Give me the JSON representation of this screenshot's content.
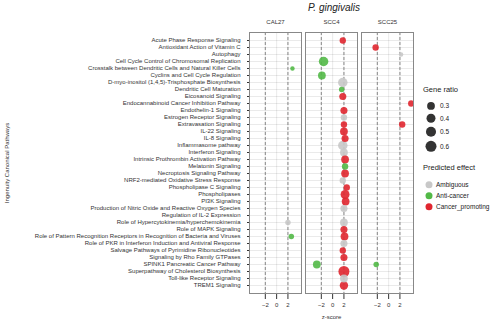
{
  "chart_data": {
    "type": "scatter",
    "title": "P. gingivalis",
    "x_label": "z-score",
    "y_label": "Ingenuity Canonical Pathways",
    "facets": [
      "CAL27",
      "SCC4",
      "SCC25"
    ],
    "xlim": [
      -4.8,
      4.4
    ],
    "xticks": [
      -2,
      0,
      2
    ],
    "reference_lines": [
      -2,
      2
    ],
    "grid": true,
    "categories": [
      "Acute Phase Response Signaling",
      "Antioxidant Action of Vitamin C",
      "Autophagy",
      "Cell Cycle Control of Chromosomal Replication",
      "Crosstalk between Dendritic Cells and Natural Killer Cells",
      "Cyclins and Cell Cycle Regulation",
      "D-myo-inositol (1,4,5)-Trisphosphate Biosynthesis",
      "Dendritic Cell Maturation",
      "Eicosanoid Signaling",
      "Endocannabinoid Cancer Inhibition Pathway",
      "Endothelin-1 Signaling",
      "Estrogen Receptor Signaling",
      "Extravasation Signaling",
      "IL-22 Signaling",
      "IL-8 Signaling",
      "Inflammasome pathway",
      "Interferon Signaling",
      "Intrinsic Prothrombin Activation Pathway",
      "Melatonin Signaling",
      "Necroptosis Signaling Pathway",
      "NRF2-mediated Oxidative Stress Response",
      "Phospholipase C Signaling",
      "Phospholipases",
      "PI3K Signaling",
      "Production of Nitric Oxide and Reactive Oxygen Species",
      "Regulation of IL-2 Expression",
      "Role of Hypercytokinemia/hyperchemokinemia",
      "Role of MAPK Signaling",
      "Role of Pattern Recognition Receptors in Recognition of Bacteria and Viruses",
      "Role of PKR in Interferon Induction and Antiviral Response",
      "Salvage Pathways of Pyrimidine Ribonucleotides",
      "Signaling by Rho Family GTPases",
      "SPINK1 Pancreatic Cancer Pathway",
      "Superpathway of Cholesterol Biosynthesis",
      "Toll-like Receptor Signaling",
      "TREM1 Signaling"
    ],
    "size_legend": {
      "title": "Gene ratio",
      "values": [
        0.3,
        0.4,
        0.5,
        0.6
      ]
    },
    "legend_title": "Predicted effect",
    "series": [
      {
        "name": "Ambiguous",
        "color": "#c8c8c8",
        "values": [
          {
            "facet": "CAL27",
            "category": "Role of Hypercytokinemia/hyperchemokinemia",
            "z": 2.0,
            "gene_ratio": 0.15
          },
          {
            "facet": "SCC4",
            "category": "D-myo-inositol (1,4,5)-Trisphosphate Biosynthesis",
            "z": 1.8,
            "gene_ratio": 0.45
          },
          {
            "facet": "SCC4",
            "category": "Estrogen Receptor Signaling",
            "z": 2.0,
            "gene_ratio": 0.2
          },
          {
            "facet": "SCC4",
            "category": "Inflammasome pathway",
            "z": 1.8,
            "gene_ratio": 0.45
          },
          {
            "facet": "SCC4",
            "category": "Interferon Signaling",
            "z": 2.0,
            "gene_ratio": 0.3
          },
          {
            "facet": "SCC4",
            "category": "NRF2-mediated Oxidative Stress Response",
            "z": 1.8,
            "gene_ratio": 0.2
          },
          {
            "facet": "SCC4",
            "category": "Production of Nitric Oxide and Reactive Oxygen Species",
            "z": 2.0,
            "gene_ratio": 0.25
          },
          {
            "facet": "SCC4",
            "category": "Role of Hypercytokinemia/hyperchemokinemia",
            "z": 2.0,
            "gene_ratio": 0.3
          },
          {
            "facet": "SCC4",
            "category": "Role of PKR in Interferon Induction and Antiviral Response",
            "z": 2.0,
            "gene_ratio": 0.25
          },
          {
            "facet": "SCC4",
            "category": "Toll-like Receptor Signaling",
            "z": 2.0,
            "gene_ratio": 0.3
          },
          {
            "facet": "SCC25",
            "category": "Autophagy",
            "z": 2.2,
            "gene_ratio": 0.1
          }
        ]
      },
      {
        "name": "Anti-cancer",
        "color": "#52b947",
        "values": [
          {
            "facet": "CAL27",
            "category": "Crosstalk between Dendritic Cells and Natural Killer Cells",
            "z": 2.8,
            "gene_ratio": 0.1
          },
          {
            "facet": "CAL27",
            "category": "Role of Pattern Recognition Receptors in Recognition of Bacteria and Viruses",
            "z": 2.6,
            "gene_ratio": 0.15
          },
          {
            "facet": "SCC4",
            "category": "Cell Cycle Control of Chromosomal Replication",
            "z": -1.6,
            "gene_ratio": 0.45
          },
          {
            "facet": "SCC4",
            "category": "Cyclins and Cell Cycle Regulation",
            "z": -1.9,
            "gene_ratio": 0.3
          },
          {
            "facet": "SCC4",
            "category": "Dendritic Cell Maturation",
            "z": 1.6,
            "gene_ratio": 0.15
          },
          {
            "facet": "SCC4",
            "category": "Melatonin Signaling",
            "z": 2.2,
            "gene_ratio": 0.2
          },
          {
            "facet": "SCC4",
            "category": "SPINK1 Pancreatic Cancer Pathway",
            "z": -2.8,
            "gene_ratio": 0.3
          },
          {
            "facet": "SCC25",
            "category": "SPINK1 Pancreatic Cancer Pathway",
            "z": -2.2,
            "gene_ratio": 0.15
          }
        ]
      },
      {
        "name": "Cancer_promoting",
        "color": "#e0262f",
        "values": [
          {
            "facet": "SCC4",
            "category": "Acute Phase Response Signaling",
            "z": 1.8,
            "gene_ratio": 0.2
          },
          {
            "facet": "SCC4",
            "category": "Eicosanoid Signaling",
            "z": 1.8,
            "gene_ratio": 0.25
          },
          {
            "facet": "SCC4",
            "category": "Endothelin-1 Signaling",
            "z": 2.0,
            "gene_ratio": 0.25
          },
          {
            "facet": "SCC4",
            "category": "Extravasation Signaling",
            "z": 2.0,
            "gene_ratio": 0.2
          },
          {
            "facet": "SCC4",
            "category": "IL-22 Signaling",
            "z": 2.0,
            "gene_ratio": 0.3
          },
          {
            "facet": "SCC4",
            "category": "IL-8 Signaling",
            "z": 2.2,
            "gene_ratio": 0.25
          },
          {
            "facet": "SCC4",
            "category": "Intrinsic Prothrombin Activation Pathway",
            "z": 2.2,
            "gene_ratio": 0.3
          },
          {
            "facet": "SCC4",
            "category": "Necroptosis Signaling Pathway",
            "z": 2.2,
            "gene_ratio": 0.3
          },
          {
            "facet": "SCC4",
            "category": "Phospholipase C Signaling",
            "z": 2.5,
            "gene_ratio": 0.2
          },
          {
            "facet": "SCC4",
            "category": "Phospholipases",
            "z": 2.2,
            "gene_ratio": 0.4
          },
          {
            "facet": "SCC4",
            "category": "PI3K Signaling",
            "z": 2.3,
            "gene_ratio": 0.3
          },
          {
            "facet": "SCC4",
            "category": "Role of MAPK Signaling",
            "z": 2.0,
            "gene_ratio": 0.25
          },
          {
            "facet": "SCC4",
            "category": "Role of Pattern Recognition Receptors in Recognition of Bacteria and Viruses",
            "z": 2.1,
            "gene_ratio": 0.3
          },
          {
            "facet": "SCC4",
            "category": "Salvage Pathways of Pyrimidine Ribonucleotides",
            "z": 1.8,
            "gene_ratio": 0.2
          },
          {
            "facet": "SCC4",
            "category": "Signaling by Rho Family GTPases",
            "z": 2.0,
            "gene_ratio": 0.25
          },
          {
            "facet": "SCC4",
            "category": "Superpathway of Cholesterol Biosynthesis",
            "z": 2.0,
            "gene_ratio": 0.6
          },
          {
            "facet": "SCC4",
            "category": "TREM1 Signaling",
            "z": 2.0,
            "gene_ratio": 0.35
          },
          {
            "facet": "SCC25",
            "category": "Antioxidant Action of Vitamin C",
            "z": -2.3,
            "gene_ratio": 0.2
          },
          {
            "facet": "SCC25",
            "category": "Endocannabinoid Cancer Inhibition Pathway",
            "z": 4.0,
            "gene_ratio": 0.2
          },
          {
            "facet": "SCC25",
            "category": "Extravasation Signaling",
            "z": 2.4,
            "gene_ratio": 0.2
          }
        ]
      }
    ]
  }
}
